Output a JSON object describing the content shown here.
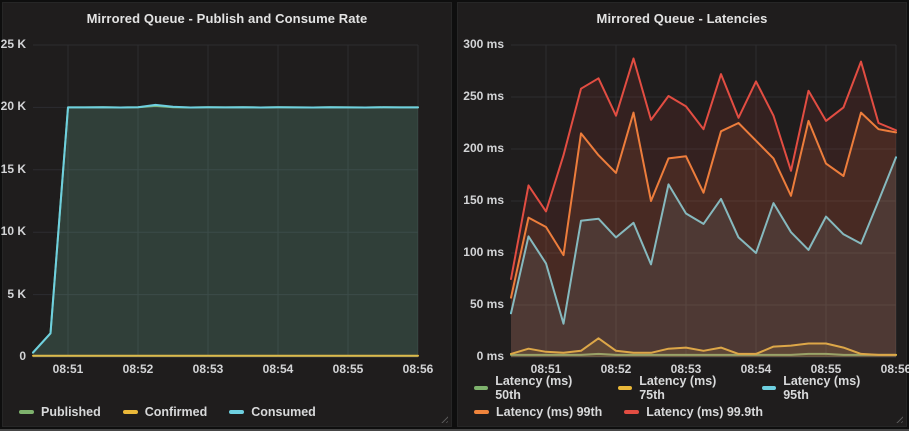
{
  "theme": {
    "page_bg": "#0e0e0e",
    "panel_bg": "#1f1d1d",
    "grid_color": "#2d2d30",
    "axis_color": "#3a3a3c",
    "tick_color": "#d3d4d6",
    "title_color": "#e3e3e3",
    "fill_opacity": 0.11
  },
  "chart_data": [
    {
      "type": "area",
      "title": "Mirrored Queue - Publish and Consume Rate",
      "x_start": "08:50:30",
      "x_end": "08:56:00",
      "interval_s": 15,
      "x_span_s": 330,
      "x_first_tick_s": 30,
      "x_ticks": [
        "08:51",
        "08:52",
        "08:53",
        "08:54",
        "08:55",
        "08:56"
      ],
      "y_ticks_top_to_bottom": [
        "25 K",
        "20 K",
        "15 K",
        "10 K",
        "5 K",
        "0"
      ],
      "ylim": [
        0,
        25000
      ],
      "grid": true,
      "legend_position": "bottom",
      "legend_rows": [
        [
          "Published",
          "Confirmed",
          "Consumed"
        ]
      ],
      "series": [
        {
          "name": "Published",
          "color": "#7EB26D",
          "values": [
            350,
            1900,
            20000,
            20000,
            20020,
            19990,
            20010,
            20120,
            20010,
            19990,
            20010,
            20000,
            20020,
            19990,
            20010,
            20000,
            19990,
            20015,
            20000,
            19995,
            20010,
            20000,
            20000
          ]
        },
        {
          "name": "Confirmed",
          "color": "#EAB839",
          "values": [
            0,
            0,
            0,
            0,
            0,
            0,
            0,
            0,
            0,
            0,
            0,
            0,
            0,
            0,
            0,
            0,
            0,
            0,
            0,
            0,
            0,
            0,
            0
          ]
        },
        {
          "name": "Consumed",
          "color": "#6ED0E0",
          "values": [
            350,
            1900,
            20000,
            20000,
            20020,
            19990,
            20010,
            20200,
            20060,
            19990,
            20010,
            20000,
            20020,
            19990,
            20010,
            20000,
            19990,
            20015,
            20000,
            19995,
            20010,
            20000,
            20000
          ]
        }
      ]
    },
    {
      "type": "area",
      "title": "Mirrored Queue - Latencies",
      "x_start": "08:50:30",
      "x_end": "08:56:00",
      "interval_s": 15,
      "x_span_s": 330,
      "x_first_tick_s": 30,
      "x_ticks": [
        "08:51",
        "08:52",
        "08:53",
        "08:54",
        "08:55",
        "08:56"
      ],
      "y_ticks_top_to_bottom": [
        "300 ms",
        "250 ms",
        "200 ms",
        "150 ms",
        "100 ms",
        "50 ms",
        "0 ms"
      ],
      "ylim": [
        0,
        300
      ],
      "grid": true,
      "legend_position": "bottom",
      "legend_rows": [
        [
          "Latency (ms) 50th",
          "Latency (ms) 75th",
          "Latency (ms) 95th"
        ],
        [
          "Latency (ms) 99th",
          "Latency (ms) 99.9th"
        ]
      ],
      "series": [
        {
          "name": "Latency (ms) 50th",
          "color": "#7EB26D",
          "values": [
            2,
            2,
            2,
            2,
            2,
            3,
            2,
            2,
            2,
            2,
            2,
            2,
            2,
            2,
            2,
            2,
            2,
            3,
            3,
            2,
            2,
            2,
            2
          ]
        },
        {
          "name": "Latency (ms) 75th",
          "color": "#EAB839",
          "values": [
            3,
            8,
            5,
            4,
            6,
            18,
            6,
            4,
            4,
            8,
            9,
            6,
            9,
            3,
            3,
            10,
            11,
            13,
            13,
            9,
            3,
            2,
            2
          ]
        },
        {
          "name": "Latency (ms) 95th",
          "color": "#6ED0E0",
          "values": [
            42,
            116,
            90,
            32,
            131,
            133,
            115,
            129,
            89,
            166,
            138,
            128,
            152,
            115,
            100,
            148,
            120,
            103,
            135,
            118,
            109,
            150,
            192
          ]
        },
        {
          "name": "Latency (ms) 99th",
          "color": "#EF843C",
          "values": [
            57,
            134,
            125,
            98,
            215,
            194,
            177,
            235,
            150,
            191,
            193,
            158,
            217,
            225,
            208,
            191,
            155,
            227,
            186,
            174,
            235,
            219,
            216
          ]
        },
        {
          "name": "Latency (ms) 99.9th",
          "color": "#E24D42",
          "values": [
            75,
            165,
            140,
            194,
            258,
            268,
            232,
            287,
            228,
            251,
            241,
            219,
            272,
            230,
            265,
            232,
            179,
            256,
            227,
            240,
            284,
            225,
            218
          ]
        }
      ]
    }
  ]
}
